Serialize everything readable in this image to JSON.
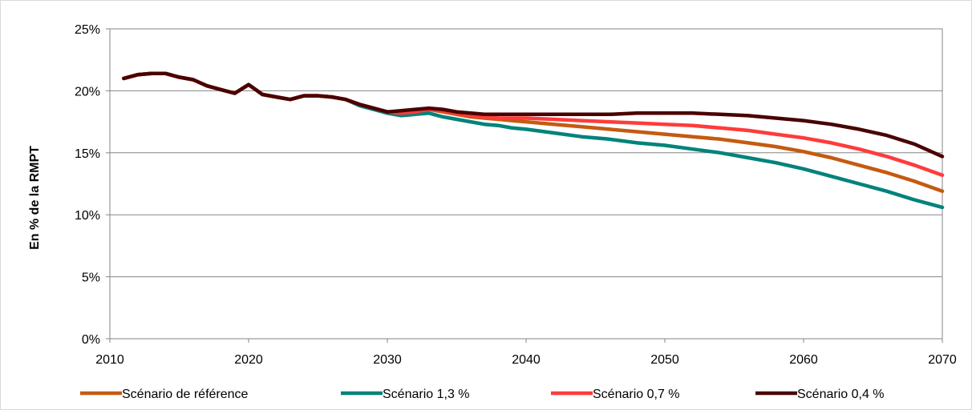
{
  "chart_data": {
    "type": "line",
    "title": "",
    "xlabel": "",
    "ylabel": "En % de la RMPT",
    "xlim": [
      2010,
      2070
    ],
    "ylim": [
      0,
      25
    ],
    "x_ticks": [
      2010,
      2020,
      2030,
      2040,
      2050,
      2060,
      2070
    ],
    "x_tick_labels": [
      "2010",
      "2020",
      "2030",
      "2040",
      "2050",
      "2060",
      "2070"
    ],
    "y_ticks": [
      0,
      5,
      10,
      15,
      20,
      25
    ],
    "y_tick_labels": [
      "0%",
      "5%",
      "10%",
      "15%",
      "20%",
      "25%"
    ],
    "grid": "horizontal",
    "legend_position": "bottom",
    "series": [
      {
        "name": "Scénario de référence",
        "color": "#c55a11",
        "x": [
          2011,
          2012,
          2013,
          2014,
          2015,
          2016,
          2017,
          2018,
          2019,
          2020,
          2021,
          2022,
          2023,
          2024,
          2025,
          2026,
          2027,
          2028,
          2029,
          2030,
          2031,
          2032,
          2033,
          2034,
          2035,
          2036,
          2037,
          2038,
          2039,
          2040,
          2042,
          2044,
          2046,
          2048,
          2050,
          2052,
          2054,
          2056,
          2058,
          2060,
          2062,
          2064,
          2066,
          2068,
          2070
        ],
        "values": [
          21.0,
          21.3,
          21.4,
          21.4,
          21.1,
          20.9,
          20.4,
          20.1,
          19.8,
          20.5,
          19.7,
          19.5,
          19.3,
          19.6,
          19.6,
          19.5,
          19.3,
          18.9,
          18.6,
          18.3,
          18.2,
          18.3,
          18.5,
          18.3,
          18.1,
          17.9,
          17.8,
          17.7,
          17.6,
          17.5,
          17.3,
          17.1,
          16.9,
          16.7,
          16.5,
          16.3,
          16.1,
          15.8,
          15.5,
          15.1,
          14.6,
          14.0,
          13.4,
          12.7,
          11.9
        ]
      },
      {
        "name": "Scénario 1,3 %",
        "color": "#00837b",
        "x": [
          2011,
          2012,
          2013,
          2014,
          2015,
          2016,
          2017,
          2018,
          2019,
          2020,
          2021,
          2022,
          2023,
          2024,
          2025,
          2026,
          2027,
          2028,
          2029,
          2030,
          2031,
          2032,
          2033,
          2034,
          2035,
          2036,
          2037,
          2038,
          2039,
          2040,
          2042,
          2044,
          2046,
          2048,
          2050,
          2052,
          2054,
          2056,
          2058,
          2060,
          2062,
          2064,
          2066,
          2068,
          2070
        ],
        "values": [
          21.0,
          21.3,
          21.4,
          21.4,
          21.1,
          20.9,
          20.4,
          20.1,
          19.8,
          20.5,
          19.7,
          19.5,
          19.3,
          19.6,
          19.6,
          19.5,
          19.3,
          18.8,
          18.5,
          18.2,
          18.0,
          18.1,
          18.2,
          17.9,
          17.7,
          17.5,
          17.3,
          17.2,
          17.0,
          16.9,
          16.6,
          16.3,
          16.1,
          15.8,
          15.6,
          15.3,
          15.0,
          14.6,
          14.2,
          13.7,
          13.1,
          12.5,
          11.9,
          11.2,
          10.6
        ]
      },
      {
        "name": "Scénario 0,7 %",
        "color": "#ff3b3b",
        "x": [
          2011,
          2012,
          2013,
          2014,
          2015,
          2016,
          2017,
          2018,
          2019,
          2020,
          2021,
          2022,
          2023,
          2024,
          2025,
          2026,
          2027,
          2028,
          2029,
          2030,
          2031,
          2032,
          2033,
          2034,
          2035,
          2036,
          2037,
          2038,
          2039,
          2040,
          2042,
          2044,
          2046,
          2048,
          2050,
          2052,
          2054,
          2056,
          2058,
          2060,
          2062,
          2064,
          2066,
          2068,
          2070
        ],
        "values": [
          21.0,
          21.3,
          21.4,
          21.4,
          21.1,
          20.9,
          20.4,
          20.1,
          19.8,
          20.5,
          19.7,
          19.5,
          19.3,
          19.6,
          19.6,
          19.5,
          19.3,
          18.9,
          18.6,
          18.3,
          18.2,
          18.3,
          18.5,
          18.4,
          18.2,
          18.0,
          17.9,
          17.8,
          17.8,
          17.8,
          17.7,
          17.6,
          17.5,
          17.4,
          17.3,
          17.2,
          17.0,
          16.8,
          16.5,
          16.2,
          15.8,
          15.3,
          14.7,
          14.0,
          13.2
        ]
      },
      {
        "name": "Scénario 0,4 %",
        "color": "#4a0000",
        "x": [
          2011,
          2012,
          2013,
          2014,
          2015,
          2016,
          2017,
          2018,
          2019,
          2020,
          2021,
          2022,
          2023,
          2024,
          2025,
          2026,
          2027,
          2028,
          2029,
          2030,
          2031,
          2032,
          2033,
          2034,
          2035,
          2036,
          2037,
          2038,
          2039,
          2040,
          2042,
          2044,
          2046,
          2048,
          2050,
          2052,
          2054,
          2056,
          2058,
          2060,
          2062,
          2064,
          2066,
          2068,
          2070
        ],
        "values": [
          21.0,
          21.3,
          21.4,
          21.4,
          21.1,
          20.9,
          20.4,
          20.1,
          19.8,
          20.5,
          19.7,
          19.5,
          19.3,
          19.6,
          19.6,
          19.5,
          19.3,
          18.9,
          18.6,
          18.3,
          18.4,
          18.5,
          18.6,
          18.5,
          18.3,
          18.2,
          18.1,
          18.1,
          18.1,
          18.1,
          18.1,
          18.1,
          18.1,
          18.2,
          18.2,
          18.2,
          18.1,
          18.0,
          17.8,
          17.6,
          17.3,
          16.9,
          16.4,
          15.7,
          14.7
        ]
      }
    ]
  }
}
